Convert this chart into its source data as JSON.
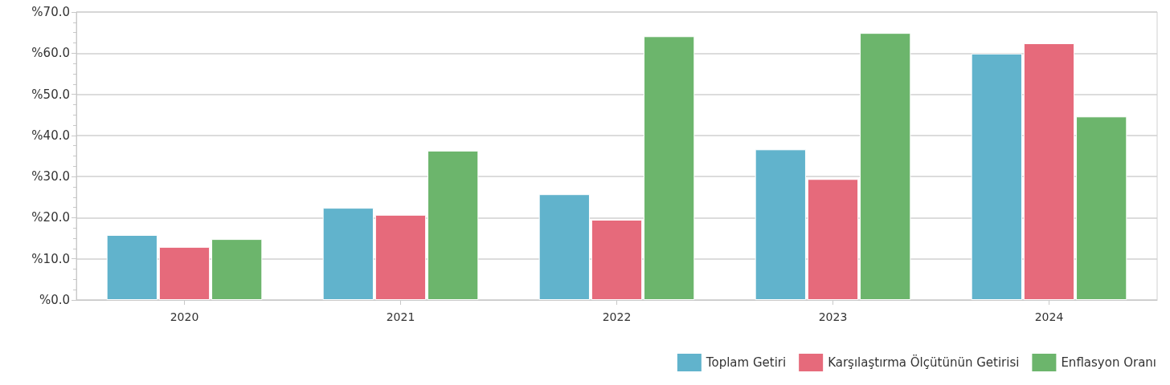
{
  "chart_data": {
    "type": "bar",
    "categories": [
      "2020",
      "2021",
      "2022",
      "2023",
      "2024"
    ],
    "series": [
      {
        "name": "Toplam Getiri",
        "color": "#61b3cc",
        "values": [
          15.8,
          22.4,
          25.7,
          36.6,
          59.9
        ]
      },
      {
        "name": "Karşılaştırma Ölçütünün Getirisi",
        "color": "#e66a7b",
        "values": [
          12.9,
          20.7,
          19.5,
          29.4,
          62.4
        ]
      },
      {
        "name": "Enflasyon Oranı",
        "color": "#6cb56c",
        "values": [
          14.8,
          36.3,
          64.1,
          64.9,
          44.6
        ]
      }
    ],
    "ylim": [
      0,
      70
    ],
    "yticks": [
      {
        "value": 0,
        "label": "%0.0"
      },
      {
        "value": 10,
        "label": "%10.0"
      },
      {
        "value": 20,
        "label": "%20.0"
      },
      {
        "value": 30,
        "label": "%30.0"
      },
      {
        "value": 40,
        "label": "%40.0"
      },
      {
        "value": 50,
        "label": "%50.0"
      },
      {
        "value": 60,
        "label": "%60.0"
      },
      {
        "value": 70,
        "label": "%70.0"
      }
    ],
    "grid": "y",
    "legend": "bottom right"
  }
}
